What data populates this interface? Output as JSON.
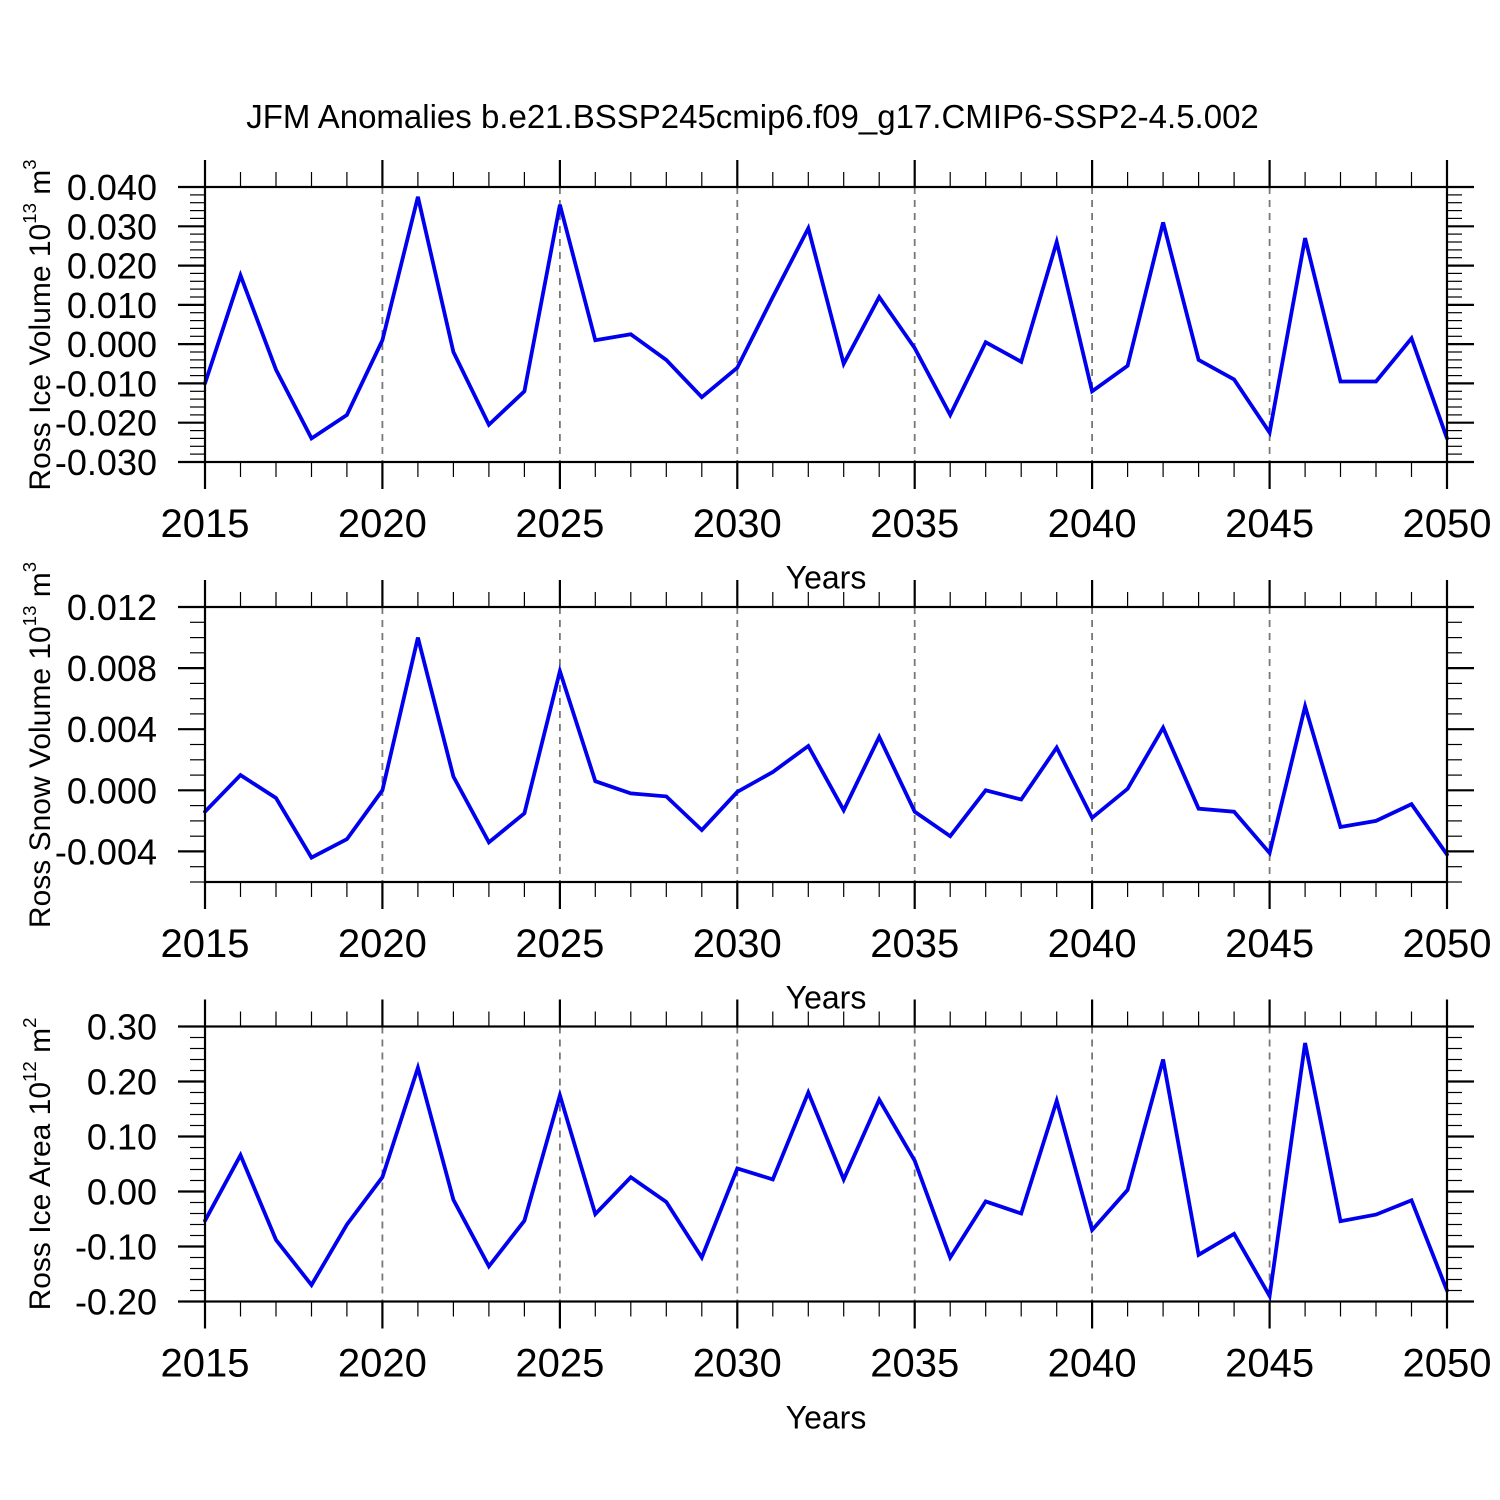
{
  "title": "JFM Anomalies b.e21.BSSP245cmip6.f09_g17.CMIP6-SSP2-4.5.002",
  "x_axis": {
    "label": "Years",
    "range": [
      2015,
      2050
    ],
    "major_ticks": [
      2015,
      2020,
      2025,
      2030,
      2035,
      2040,
      2045,
      2050
    ],
    "major_tick_labels": [
      "2015",
      "2020",
      "2025",
      "2030",
      "2035",
      "2040",
      "2045",
      "2050"
    ],
    "minor_step": 1,
    "gridline_years": [
      2020,
      2025,
      2030,
      2035,
      2040,
      2045
    ]
  },
  "colors": {
    "line": "#0000EE",
    "grid": "#787878",
    "axis": "#000000",
    "background": "#ffffff"
  },
  "years": [
    2015,
    2016,
    2017,
    2018,
    2019,
    2020,
    2021,
    2022,
    2023,
    2024,
    2025,
    2026,
    2027,
    2028,
    2029,
    2030,
    2031,
    2032,
    2033,
    2034,
    2035,
    2036,
    2037,
    2038,
    2039,
    2040,
    2041,
    2042,
    2043,
    2044,
    2045,
    2046,
    2047,
    2048,
    2049,
    2050
  ],
  "chart_data": [
    {
      "type": "line",
      "name": "ross-ice-volume",
      "ylabel": {
        "name": "Ross Ice Volume 10",
        "exp": "13",
        "unit": " m",
        "unit_exp": "3"
      },
      "ylim": [
        -0.03,
        0.04
      ],
      "y_major_ticks": [
        0.04,
        0.03,
        0.02,
        0.01,
        0.0,
        -0.01,
        -0.02,
        -0.03
      ],
      "y_tick_labels": [
        "0.040",
        "0.030",
        "0.020",
        "0.010",
        "0.000",
        "-0.010",
        "-0.020",
        "-0.030"
      ],
      "y_minor_step": 0.002,
      "values": [
        -0.01,
        0.0175,
        -0.0065,
        -0.024,
        -0.018,
        0.001,
        0.0375,
        -0.002,
        -0.0205,
        -0.012,
        0.0355,
        0.001,
        0.0025,
        -0.004,
        -0.0135,
        -0.006,
        0.012,
        0.0295,
        -0.005,
        0.012,
        -0.001,
        -0.018,
        0.0005,
        -0.0045,
        0.026,
        -0.012,
        -0.0055,
        0.031,
        -0.004,
        -0.009,
        -0.0225,
        0.027,
        -0.0095,
        -0.0095,
        0.0015,
        -0.024
      ]
    },
    {
      "type": "line",
      "name": "ross-snow-volume",
      "ylabel": {
        "name": "Ross Snow Volume 10",
        "exp": "13",
        "unit": " m",
        "unit_exp": "3"
      },
      "ylim": [
        -0.006,
        0.012
      ],
      "y_major_ticks": [
        0.012,
        0.008,
        0.004,
        0.0,
        -0.004
      ],
      "y_tick_labels": [
        "0.012",
        "0.008",
        "0.004",
        "0.000",
        "-0.004"
      ],
      "y_minor_step": 0.001,
      "values": [
        -0.0014,
        0.001,
        -0.0005,
        -0.0044,
        -0.0032,
        0.0,
        0.01,
        0.0009,
        -0.0034,
        -0.0015,
        0.0078,
        0.0006,
        -0.0002,
        -0.0004,
        -0.0026,
        -0.0001,
        0.0012,
        0.0029,
        -0.0013,
        0.0035,
        -0.0014,
        -0.003,
        0.0,
        -0.0006,
        0.0028,
        -0.0018,
        0.0001,
        0.0041,
        -0.0012,
        -0.0014,
        -0.0041,
        0.0055,
        -0.0024,
        -0.002,
        -0.0009,
        -0.0042
      ]
    },
    {
      "type": "line",
      "name": "ross-ice-area",
      "ylabel": {
        "name": "Ross Ice Area 10",
        "exp": "12",
        "unit": " m",
        "unit_exp": "2"
      },
      "ylim": [
        -0.2,
        0.3
      ],
      "y_major_ticks": [
        0.3,
        0.2,
        0.1,
        0.0,
        -0.1,
        -0.2
      ],
      "y_tick_labels": [
        "0.30",
        "0.20",
        "0.10",
        "0.00",
        "-0.10",
        "-0.20"
      ],
      "y_minor_step": 0.02,
      "values": [
        -0.053,
        0.066,
        -0.088,
        -0.17,
        -0.06,
        0.026,
        0.225,
        -0.015,
        -0.136,
        -0.053,
        0.175,
        -0.041,
        0.026,
        -0.019,
        -0.12,
        0.042,
        0.022,
        0.18,
        0.022,
        0.167,
        0.056,
        -0.12,
        -0.018,
        -0.04,
        0.165,
        -0.07,
        0.003,
        0.24,
        -0.115,
        -0.077,
        -0.19,
        0.27,
        -0.054,
        -0.042,
        -0.016,
        -0.18
      ]
    }
  ]
}
